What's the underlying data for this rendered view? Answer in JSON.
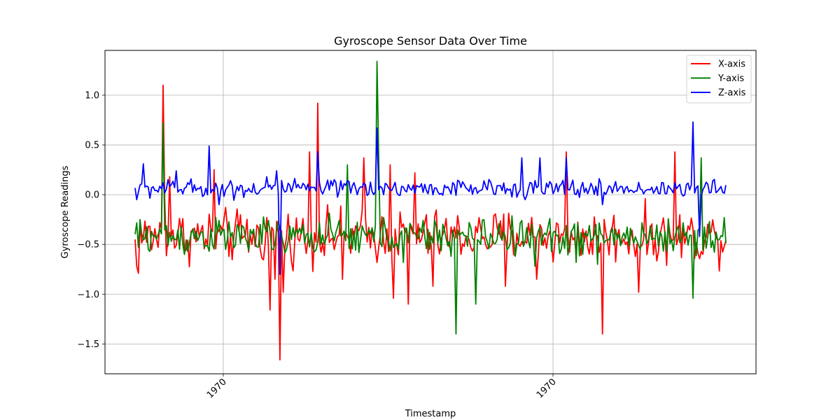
{
  "chart_data": {
    "type": "line",
    "title": "Gyroscope Sensor Data Over Time",
    "xlabel": "Timestamp",
    "ylabel": "Gyroscope Readings",
    "x_ticks": [
      "1970",
      "1970"
    ],
    "y_ticks": [
      1.0,
      0.5,
      0.0,
      -0.5,
      -1.0,
      -1.5
    ],
    "ylim": [
      -1.8,
      1.45
    ],
    "grid": true,
    "legend_position": "top-right",
    "n_points": 360,
    "series": [
      {
        "name": "X-axis",
        "color": "#ff0000",
        "baseline": -0.42,
        "noise": 0.13,
        "spikes": [
          [
            0,
            -0.45
          ],
          [
            1,
            -0.72
          ],
          [
            2,
            -0.79
          ],
          [
            17,
            1.1
          ],
          [
            18,
            -0.05
          ],
          [
            21,
            0.18
          ],
          [
            48,
            0.25
          ],
          [
            82,
            -1.16
          ],
          [
            85,
            -0.85
          ],
          [
            88,
            -1.66
          ],
          [
            90,
            -0.98
          ],
          [
            106,
            0.43
          ],
          [
            111,
            0.92
          ],
          [
            126,
            -0.85
          ],
          [
            139,
            0.37
          ],
          [
            155,
            0.3
          ],
          [
            157,
            -1.04
          ],
          [
            166,
            -1.1
          ],
          [
            170,
            0.22
          ],
          [
            181,
            -0.92
          ],
          [
            198,
            -0.6
          ],
          [
            225,
            -0.92
          ],
          [
            244,
            -0.85
          ],
          [
            262,
            0.43
          ],
          [
            278,
            -0.6
          ],
          [
            284,
            -1.4
          ],
          [
            306,
            -0.98
          ],
          [
            328,
            0.43
          ],
          [
            345,
            -0.6
          ]
        ]
      },
      {
        "name": "Y-axis",
        "color": "#008000",
        "baseline": -0.42,
        "noise": 0.09,
        "spikes": [
          [
            17,
            0.72
          ],
          [
            30,
            -0.6
          ],
          [
            55,
            -0.55
          ],
          [
            83,
            -0.55
          ],
          [
            92,
            -0.55
          ],
          [
            129,
            0.3
          ],
          [
            147,
            1.34
          ],
          [
            148,
            0.4
          ],
          [
            163,
            -0.68
          ],
          [
            195,
            -1.4
          ],
          [
            207,
            -1.1
          ],
          [
            243,
            -0.72
          ],
          [
            268,
            -0.68
          ],
          [
            281,
            -0.7
          ],
          [
            339,
            -1.04
          ],
          [
            344,
            0.37
          ]
        ]
      },
      {
        "name": "Z-axis",
        "color": "#0000ff",
        "baseline": 0.06,
        "noise": 0.045,
        "spikes": [
          [
            1,
            -0.05
          ],
          [
            5,
            0.31
          ],
          [
            17,
            0.12
          ],
          [
            25,
            0.24
          ],
          [
            32,
            0.12
          ],
          [
            45,
            0.49
          ],
          [
            51,
            -0.1
          ],
          [
            80,
            0.18
          ],
          [
            86,
            0.24
          ],
          [
            88,
            -0.8
          ],
          [
            111,
            0.43
          ],
          [
            147,
            0.67
          ],
          [
            148,
            0.05
          ],
          [
            235,
            0.37
          ],
          [
            246,
            0.37
          ],
          [
            262,
            0.37
          ],
          [
            284,
            -0.1
          ],
          [
            339,
            0.73
          ],
          [
            343,
            -0.42
          ]
        ]
      }
    ]
  }
}
